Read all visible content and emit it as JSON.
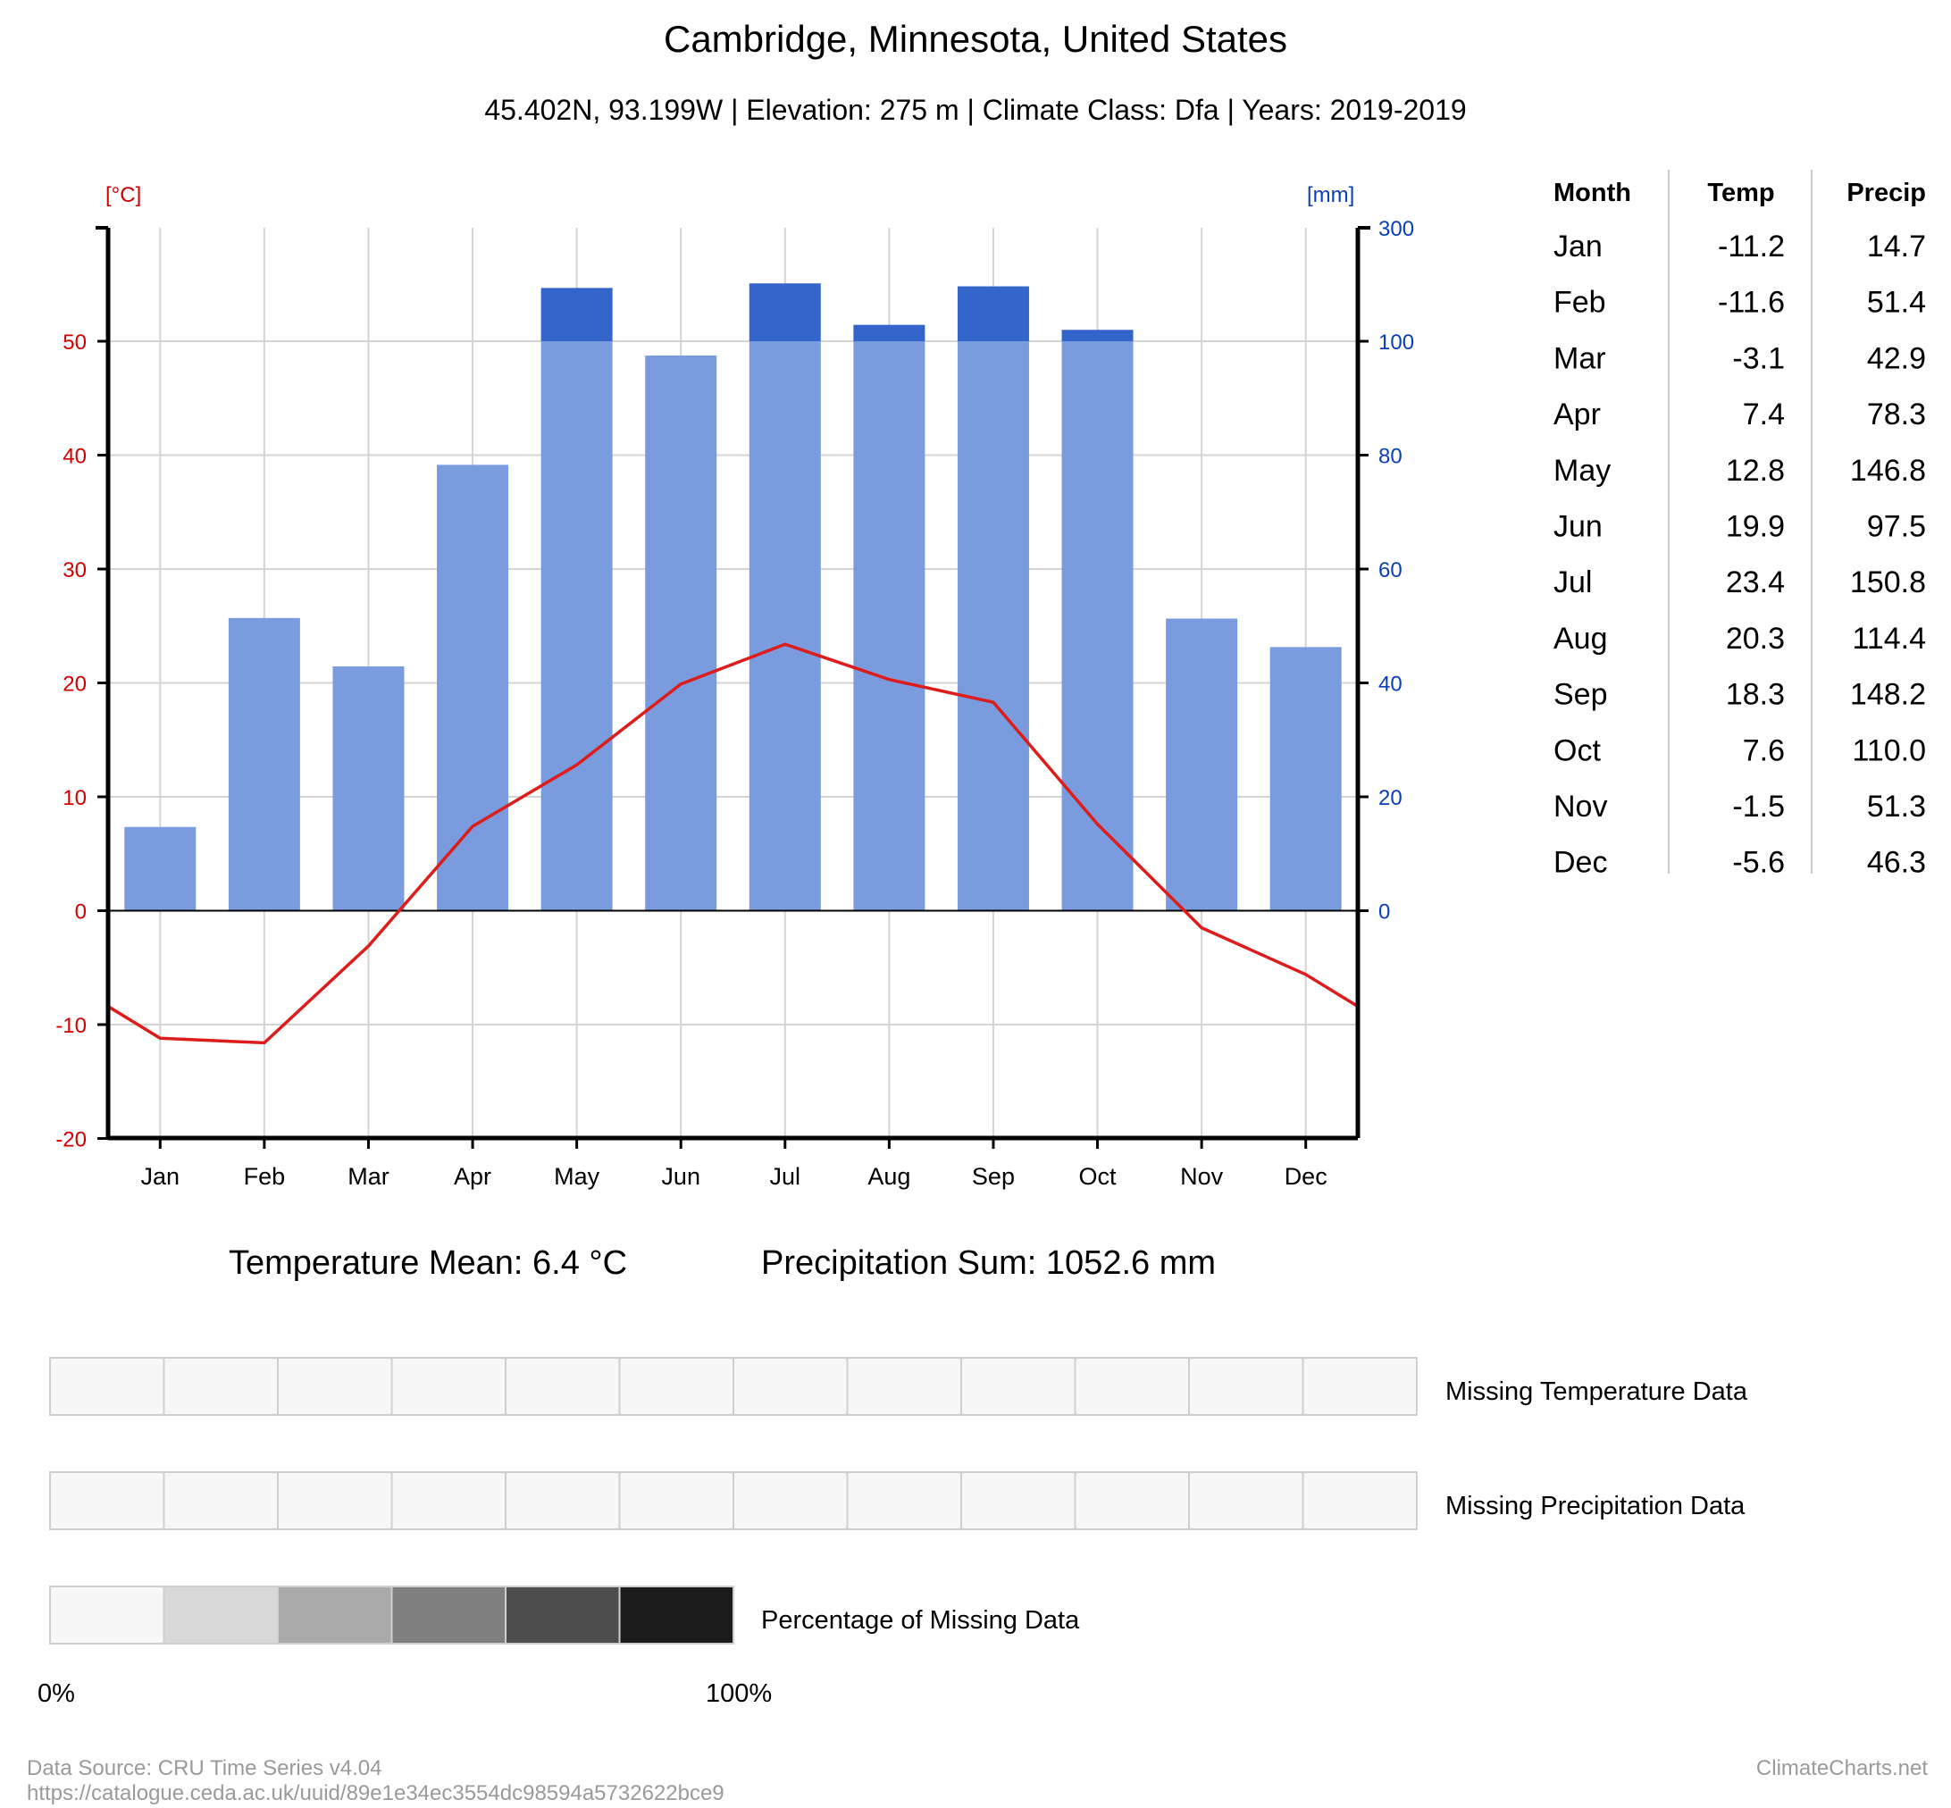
{
  "header": {
    "title": "Cambridge, Minnesota, United States",
    "subtitle": "45.402N, 93.199W | Elevation: 275 m | Climate Class: Dfa | Years: 2019-2019"
  },
  "axes": {
    "left_unit": "[°C]",
    "right_unit": "[mm]",
    "left_ticks": [
      "-20",
      "-10",
      "0",
      "10",
      "20",
      "30",
      "40",
      "50"
    ],
    "right_ticks": [
      "0",
      "20",
      "40",
      "60",
      "80",
      "100",
      "300"
    ]
  },
  "table": {
    "headers": [
      "Month",
      "Temp",
      "Precip"
    ],
    "rows": [
      [
        "Jan",
        "-11.2",
        "14.7"
      ],
      [
        "Feb",
        "-11.6",
        "51.4"
      ],
      [
        "Mar",
        "-3.1",
        "42.9"
      ],
      [
        "Apr",
        "7.4",
        "78.3"
      ],
      [
        "May",
        "12.8",
        "146.8"
      ],
      [
        "Jun",
        "19.9",
        "97.5"
      ],
      [
        "Jul",
        "23.4",
        "150.8"
      ],
      [
        "Aug",
        "20.3",
        "114.4"
      ],
      [
        "Sep",
        "18.3",
        "148.2"
      ],
      [
        "Oct",
        "7.6",
        "110.0"
      ],
      [
        "Nov",
        "-1.5",
        "51.3"
      ],
      [
        "Dec",
        "-5.6",
        "46.3"
      ]
    ]
  },
  "summary": {
    "temp_mean": "Temperature Mean: 6.4 °C",
    "precip_sum": "Precipitation Sum: 1052.6 mm"
  },
  "legend": {
    "missing_temp": "Missing Temperature Data",
    "missing_precip": "Missing Precipitation Data",
    "pct_missing": "Percentage of Missing Data",
    "pct_min": "0%",
    "pct_max": "100%",
    "missing_temp_values": [
      0,
      0,
      0,
      0,
      0,
      0,
      0,
      0,
      0,
      0,
      0,
      0
    ],
    "missing_precip_values": [
      0,
      0,
      0,
      0,
      0,
      0,
      0,
      0,
      0,
      0,
      0,
      0
    ],
    "scale_colors": [
      "#f7f7f7",
      "#d9d9d9",
      "#aaaaaa",
      "#7f7f7f",
      "#4d4d4d",
      "#1c1c1c"
    ]
  },
  "footer": {
    "source": "Data Source: CRU Time Series v4.04",
    "url": "https://catalogue.ceda.ac.uk/uuid/89e1e34ec3554dc98594a5732622bce9",
    "brand": "ClimateCharts.net"
  },
  "colors": {
    "temp_line": "#dd1c1c",
    "precip_bar": "#7a9cdf",
    "precip_bar_over": "#3465cb",
    "temp_axis": "#d00000",
    "precip_axis": "#0b3fb5"
  },
  "chart_data": {
    "type": "bar",
    "title": "Cambridge, Minnesota, United States",
    "categories": [
      "Jan",
      "Feb",
      "Mar",
      "Apr",
      "May",
      "Jun",
      "Jul",
      "Aug",
      "Sep",
      "Oct",
      "Nov",
      "Dec"
    ],
    "series": [
      {
        "name": "Precipitation",
        "unit": "mm",
        "type": "bar",
        "axis": "right",
        "values": [
          14.7,
          51.4,
          42.9,
          78.3,
          146.8,
          97.5,
          150.8,
          114.4,
          148.2,
          110.0,
          51.3,
          46.3
        ]
      },
      {
        "name": "Temperature",
        "unit": "°C",
        "type": "line",
        "axis": "left",
        "values": [
          -11.2,
          -11.6,
          -3.1,
          7.4,
          12.8,
          19.9,
          23.4,
          20.3,
          18.3,
          7.6,
          -1.5,
          -5.6
        ]
      }
    ],
    "y_left_range": [
      -20,
      60
    ],
    "y_right_range": [
      0,
      300
    ],
    "y_right_scale_break": 100,
    "grid": true
  }
}
